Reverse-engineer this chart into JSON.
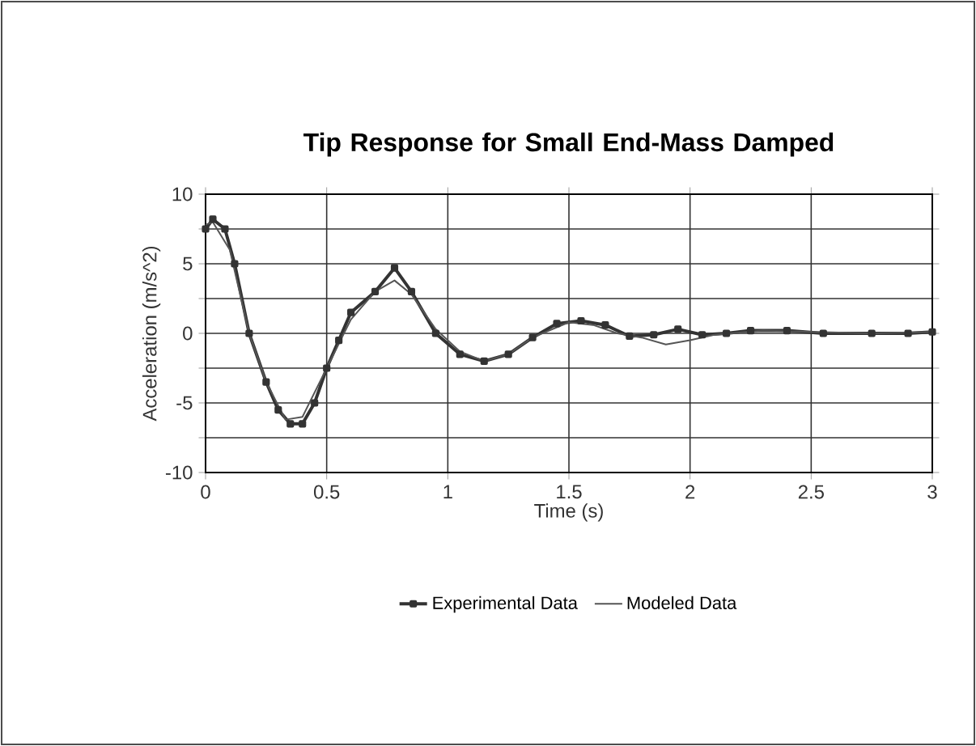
{
  "chart_data": {
    "type": "line",
    "title": "Tip Response for Small End-Mass Damped",
    "xlabel": "Time (s)",
    "ylabel": "Acceleration (m/s^2)",
    "xlim": [
      0,
      3
    ],
    "xticks": [
      0,
      0.5,
      1,
      1.5,
      2,
      2.5,
      3
    ],
    "ylim": [
      -10,
      10
    ],
    "yticks": [
      -10,
      {
        "value": -7.5,
        "label": null
      },
      -5,
      {
        "value": -2.5,
        "label": null
      },
      0,
      {
        "value": 2.5,
        "label": null
      },
      5,
      {
        "value": 7.5,
        "label": null
      },
      10
    ],
    "grid": true,
    "legend": "bottom",
    "series": [
      {
        "name": "Experimental Data",
        "color": "#333333",
        "marker": "square",
        "x": [
          0,
          0.03,
          0.08,
          0.12,
          0.18,
          0.25,
          0.3,
          0.35,
          0.4,
          0.45,
          0.5,
          0.55,
          0.6,
          0.7,
          0.78,
          0.85,
          0.95,
          1.05,
          1.15,
          1.25,
          1.35,
          1.45,
          1.55,
          1.65,
          1.75,
          1.85,
          1.95,
          2.05,
          2.15,
          2.25,
          2.4,
          2.55,
          2.75,
          2.9,
          3
        ],
        "values": [
          7.5,
          8.2,
          7.5,
          5,
          0,
          -3.5,
          -5.5,
          -6.5,
          -6.5,
          -5,
          -2.5,
          -0.5,
          1.5,
          3,
          4.7,
          3,
          0,
          -1.5,
          -2,
          -1.5,
          -0.3,
          0.7,
          0.9,
          0.6,
          -0.2,
          -0.1,
          0.3,
          -0.1,
          0,
          0.2,
          0.2,
          0,
          0,
          0,
          0.1
        ]
      },
      {
        "name": "Modeled Data",
        "color": "#555555",
        "marker": "none",
        "x": [
          0,
          0.03,
          0.1,
          0.18,
          0.25,
          0.33,
          0.4,
          0.5,
          0.6,
          0.7,
          0.78,
          0.85,
          0.95,
          1.05,
          1.15,
          1.25,
          1.35,
          1.5,
          1.6,
          1.7,
          1.8,
          1.9,
          2.0,
          2.1,
          2.3,
          2.5,
          2.75,
          3
        ],
        "values": [
          7.8,
          8,
          6,
          0,
          -3.5,
          -6.2,
          -6,
          -2.5,
          1,
          3,
          3.8,
          2.8,
          0.3,
          -1.3,
          -2,
          -1.5,
          -0.3,
          0.8,
          0.6,
          0,
          -0.3,
          -0.8,
          -0.5,
          -0.1,
          0.2,
          0.1,
          0,
          0.1
        ]
      }
    ]
  }
}
